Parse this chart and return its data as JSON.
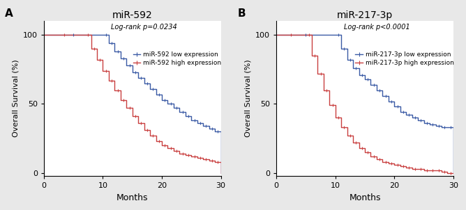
{
  "panel_A": {
    "title": "miR-592",
    "label": "A",
    "pvalue_text": "Log-rank p=0.0234",
    "legend_low": "miR-592 low expression",
    "legend_high": "miR-592 high expression",
    "low_x": [
      0,
      10,
      11,
      12,
      13,
      14,
      15,
      16,
      17,
      18,
      19,
      20,
      21,
      22,
      23,
      24,
      25,
      26,
      27,
      28,
      29,
      30
    ],
    "low_y": [
      100,
      100,
      94,
      88,
      83,
      78,
      73,
      69,
      65,
      61,
      57,
      53,
      50,
      47,
      44,
      41,
      38,
      36,
      34,
      32,
      30,
      0
    ],
    "high_x": [
      0,
      7,
      8,
      9,
      10,
      11,
      12,
      13,
      14,
      15,
      16,
      17,
      18,
      19,
      20,
      21,
      22,
      23,
      24,
      25,
      26,
      27,
      28,
      29,
      30
    ],
    "high_y": [
      100,
      100,
      90,
      82,
      74,
      67,
      60,
      53,
      47,
      41,
      36,
      31,
      27,
      23,
      20,
      18,
      16,
      14,
      13,
      12,
      11,
      10,
      9,
      8,
      0
    ]
  },
  "panel_B": {
    "title": "miR-217-3p",
    "label": "B",
    "pvalue_text": "Log-rank p<0.0001",
    "legend_low": "miR-217-3p low expression",
    "legend_high": "miR-217-3p high expression",
    "low_x": [
      0,
      10,
      11,
      12,
      13,
      14,
      15,
      16,
      17,
      18,
      19,
      20,
      21,
      22,
      23,
      24,
      25,
      26,
      27,
      28,
      29,
      30
    ],
    "low_y": [
      100,
      100,
      90,
      82,
      76,
      71,
      68,
      64,
      60,
      56,
      52,
      48,
      44,
      42,
      40,
      38,
      36,
      35,
      34,
      33,
      33,
      0
    ],
    "high_x": [
      0,
      5,
      6,
      7,
      8,
      9,
      10,
      11,
      12,
      13,
      14,
      15,
      16,
      17,
      18,
      19,
      20,
      21,
      22,
      23,
      24,
      25,
      26,
      27,
      28,
      29,
      30
    ],
    "high_y": [
      100,
      100,
      85,
      72,
      60,
      49,
      40,
      33,
      27,
      22,
      18,
      15,
      12,
      10,
      8,
      7,
      6,
      5,
      4,
      3,
      3,
      2,
      2,
      2,
      1,
      0,
      0
    ]
  },
  "blue_color": "#3B5BA5",
  "red_color": "#C94040",
  "bg_color": "#e8e8e8",
  "panel_bg": "#ffffff",
  "ylabel": "Overall Survival (%)",
  "xlabel": "Months",
  "xlim": [
    0,
    30
  ],
  "ylim": [
    -2,
    110
  ],
  "yticks": [
    0,
    50,
    100
  ],
  "xticks": [
    0,
    10,
    20,
    30
  ]
}
